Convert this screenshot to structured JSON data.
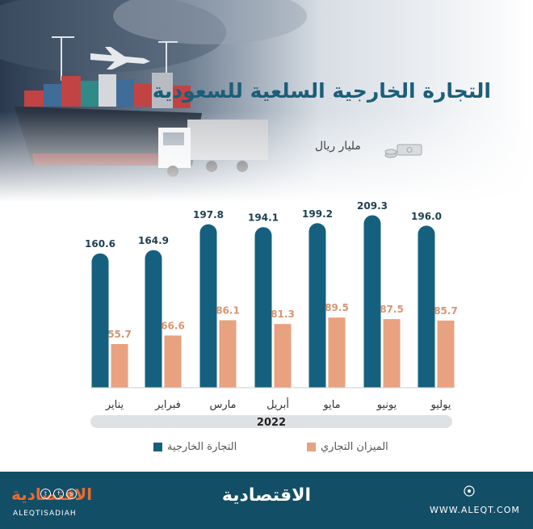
{
  "header": {
    "title": "التجارة الخارجية السلعية للسعودية",
    "unit": "مليار ريال"
  },
  "colors": {
    "trade": "#16607f",
    "balance": "#e8a27f",
    "title": "#1c5e7a",
    "footer": "#134e67",
    "brand_orange": "#e96a2f"
  },
  "chart_data": {
    "type": "bar",
    "categories": [
      "يناير",
      "فبراير",
      "مارس",
      "أبريل",
      "مايو",
      "يونيو",
      "يوليو"
    ],
    "series": [
      {
        "name": "التجارة الخارجية",
        "values": [
          160.6,
          164.9,
          197.8,
          194.1,
          199.2,
          209.3,
          196.0
        ],
        "labels": [
          "160.6",
          "164.9",
          "197.8",
          "194.1",
          "199.2",
          "209.3",
          "196.0"
        ],
        "color": "#16607f"
      },
      {
        "name": "الميزان التجاري",
        "values": [
          55.7,
          66.6,
          86.1,
          81.3,
          89.5,
          87.5,
          85.7
        ],
        "labels": [
          "55.7",
          "66.6",
          "86.1",
          "81.3",
          "89.5",
          "87.5",
          "85.7"
        ],
        "color": "#e8a27f"
      }
    ],
    "year_label": "2022",
    "ylim": [
      0,
      209.3
    ],
    "grid": false,
    "legend_position": "bottom"
  },
  "footer": {
    "brand": "الاقتصادية",
    "brand_small": "الاقتصادية",
    "social_handle": "ALEQTISADIAH",
    "url": "WWW.ALEQT.COM"
  }
}
